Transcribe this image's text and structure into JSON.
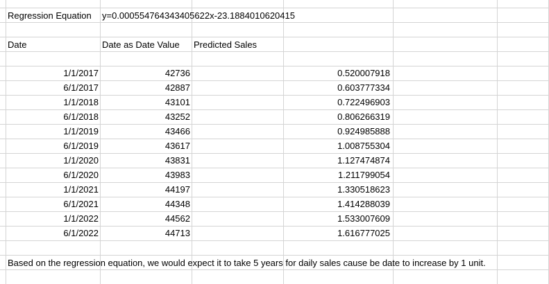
{
  "header": {
    "equation_label": "Regression Equation",
    "equation_value": "y=0.000554764343405622x-23.1884010620415"
  },
  "table": {
    "columns": [
      "Date",
      "Date as Date Value",
      "Predicted Sales"
    ],
    "rows": [
      {
        "date": "1/1/2017",
        "value": "42736",
        "sales": "0.520007918"
      },
      {
        "date": "6/1/2017",
        "value": "42887",
        "sales": "0.603777334"
      },
      {
        "date": "1/1/2018",
        "value": "43101",
        "sales": "0.722496903"
      },
      {
        "date": "6/1/2018",
        "value": "43252",
        "sales": "0.806266319"
      },
      {
        "date": "1/1/2019",
        "value": "43466",
        "sales": "0.924985888"
      },
      {
        "date": "6/1/2019",
        "value": "43617",
        "sales": "1.008755304"
      },
      {
        "date": "1/1/2020",
        "value": "43831",
        "sales": "1.127474874"
      },
      {
        "date": "6/1/2020",
        "value": "43983",
        "sales": "1.211799054"
      },
      {
        "date": "1/1/2021",
        "value": "44197",
        "sales": "1.330518623"
      },
      {
        "date": "6/1/2021",
        "value": "44348",
        "sales": "1.414288039"
      },
      {
        "date": "1/1/2022",
        "value": "44562",
        "sales": "1.533007609"
      },
      {
        "date": "6/1/2022",
        "value": "44713",
        "sales": "1.616777025"
      }
    ]
  },
  "conclusion": "Based on the regression equation, we would expect it to take 5 years for daily sales cause be date to increase by 1 unit."
}
